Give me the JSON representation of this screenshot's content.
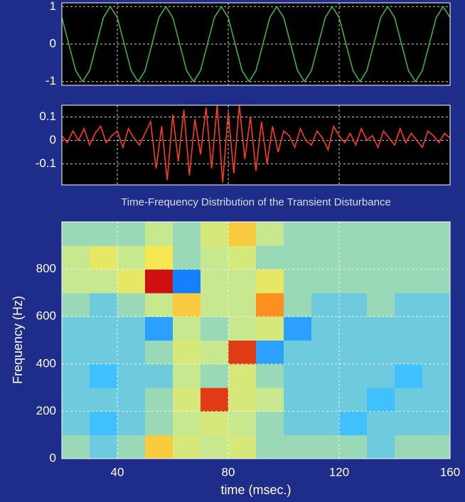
{
  "chart_data": [
    {
      "type": "line",
      "background": "#000000",
      "grid": true,
      "xtick_labels": false,
      "xlim": [
        20,
        160
      ],
      "ylim": [
        -1.1,
        1.1
      ],
      "yticks": [
        -1,
        0,
        1
      ],
      "xticks": [
        40,
        80,
        120
      ],
      "series": [
        {
          "color": "#3cb043",
          "x": [
            20,
            22.5,
            25,
            27.5,
            30,
            32.5,
            35,
            37.5,
            40,
            42.5,
            45,
            47.5,
            50,
            52.5,
            55,
            57.5,
            60,
            62.5,
            65,
            67.5,
            70,
            72.5,
            75,
            77.5,
            80,
            82.5,
            85,
            87.5,
            90,
            92.5,
            95,
            97.5,
            100,
            102.5,
            105,
            107.5,
            110,
            112.5,
            115,
            117.5,
            120,
            122.5,
            125,
            127.5,
            130,
            132.5,
            135,
            137.5,
            140,
            142.5,
            145,
            147.5,
            150,
            152.5,
            155,
            157.5,
            160
          ],
          "values": [
            0.71,
            0,
            -0.71,
            -1,
            -0.71,
            0,
            0.71,
            1,
            0.71,
            0,
            -0.71,
            -1,
            -0.71,
            0,
            0.71,
            1,
            0.71,
            0,
            -0.71,
            -1,
            -0.71,
            0,
            0.71,
            1,
            0.71,
            0,
            -0.71,
            -1,
            -0.71,
            0,
            0.71,
            1,
            0.71,
            0,
            -0.71,
            -1,
            -0.71,
            0,
            0.71,
            1,
            0.71,
            0,
            -0.71,
            -1,
            -0.71,
            0,
            0.71,
            1,
            0.71,
            0,
            -0.71,
            -1,
            -0.71,
            0,
            0.71,
            1,
            0.71
          ]
        }
      ]
    },
    {
      "type": "line",
      "background": "#000000",
      "grid": true,
      "xtick_labels": false,
      "xlim": [
        20,
        160
      ],
      "ylim": [
        -0.19,
        0.15
      ],
      "yticks": [
        {
          "value": -0.1,
          "label": "-0.1"
        },
        0,
        0.1
      ],
      "xticks": [
        40,
        80,
        120
      ],
      "series": [
        {
          "color": "#ff3b1f",
          "x": [
            20,
            22,
            24,
            26,
            28,
            30,
            32,
            34,
            36,
            38,
            40,
            42,
            44,
            46,
            48,
            50,
            52,
            54,
            56,
            58,
            60,
            62,
            64,
            66,
            68,
            70,
            72,
            74,
            76,
            78,
            80,
            82,
            84,
            86,
            88,
            90,
            92,
            94,
            96,
            98,
            100,
            102,
            104,
            106,
            108,
            110,
            112,
            114,
            116,
            118,
            120,
            122,
            124,
            126,
            128,
            130,
            132,
            134,
            136,
            138,
            140,
            142,
            144,
            146,
            148,
            150,
            152,
            154,
            156,
            158,
            160
          ],
          "values": [
            0.02,
            -0.01,
            0.04,
            0.0,
            0.05,
            -0.02,
            0.03,
            0.06,
            -0.01,
            0.02,
            0.04,
            -0.03,
            0.05,
            0.01,
            -0.02,
            0.03,
            0.08,
            -0.12,
            0.06,
            -0.17,
            0.11,
            -0.09,
            0.13,
            -0.15,
            0.09,
            -0.06,
            0.14,
            -0.12,
            0.15,
            -0.18,
            0.12,
            -0.14,
            0.15,
            -0.08,
            0.1,
            -0.13,
            0.08,
            -0.1,
            0.06,
            -0.05,
            0.04,
            0.02,
            -0.03,
            0.05,
            0.0,
            -0.02,
            0.04,
            0.01,
            -0.04,
            0.06,
            0.02,
            -0.01,
            0.03,
            -0.02,
            0.05,
            0.0,
            0.02,
            -0.03,
            0.04,
            0.01,
            -0.02,
            0.05,
            -0.01,
            0.03,
            0.0,
            -0.03,
            0.04,
            0.02,
            -0.01,
            0.03,
            0.01
          ]
        }
      ]
    },
    {
      "type": "heatmap",
      "title": "Time-Frequency Distribution of the Transient Disturbance",
      "xlabel": "time (msec.)",
      "ylabel": "Frequency (Hz)",
      "colormap": "jet",
      "grid": true,
      "xlim": [
        20,
        160
      ],
      "ylim": [
        0,
        1000
      ],
      "xticks": [
        40,
        80,
        120,
        160
      ],
      "yticks": [
        0,
        200,
        400,
        600,
        800
      ],
      "x_edges": [
        20,
        30,
        40,
        50,
        60,
        70,
        80,
        90,
        100,
        110,
        120,
        130,
        140,
        150,
        160
      ],
      "y_edges": [
        0,
        100,
        200,
        300,
        400,
        500,
        600,
        700,
        800,
        900,
        1000
      ],
      "z": [
        [
          0.5,
          0.45,
          0.5,
          0.75,
          0.6,
          0.55,
          0.6,
          0.5,
          0.5,
          0.5,
          0.5,
          0.45,
          0.5,
          0.5
        ],
        [
          0.45,
          0.4,
          0.45,
          0.5,
          0.55,
          0.6,
          0.55,
          0.5,
          0.45,
          0.45,
          0.4,
          0.45,
          0.45,
          0.45
        ],
        [
          0.45,
          0.45,
          0.45,
          0.5,
          0.6,
          0.95,
          0.6,
          0.55,
          0.45,
          0.45,
          0.45,
          0.4,
          0.45,
          0.45
        ],
        [
          0.45,
          0.4,
          0.45,
          0.45,
          0.55,
          0.5,
          0.6,
          0.5,
          0.45,
          0.45,
          0.45,
          0.45,
          0.4,
          0.45
        ],
        [
          0.45,
          0.45,
          0.45,
          0.5,
          0.6,
          0.55,
          0.95,
          0.35,
          0.45,
          0.45,
          0.45,
          0.45,
          0.45,
          0.45
        ],
        [
          0.45,
          0.45,
          0.45,
          0.35,
          0.55,
          0.5,
          0.55,
          0.6,
          0.35,
          0.45,
          0.45,
          0.45,
          0.45,
          0.45
        ],
        [
          0.5,
          0.45,
          0.5,
          0.55,
          0.75,
          0.55,
          0.55,
          0.85,
          0.5,
          0.45,
          0.45,
          0.5,
          0.45,
          0.45
        ],
        [
          0.55,
          0.55,
          0.65,
          1.0,
          0.3,
          0.55,
          0.55,
          0.65,
          0.5,
          0.5,
          0.5,
          0.5,
          0.5,
          0.5
        ],
        [
          0.55,
          0.65,
          0.55,
          0.7,
          0.5,
          0.55,
          0.6,
          0.5,
          0.5,
          0.5,
          0.5,
          0.5,
          0.5,
          0.5
        ],
        [
          0.5,
          0.5,
          0.5,
          0.55,
          0.5,
          0.6,
          0.75,
          0.55,
          0.5,
          0.5,
          0.5,
          0.5,
          0.5,
          0.5
        ]
      ]
    }
  ]
}
